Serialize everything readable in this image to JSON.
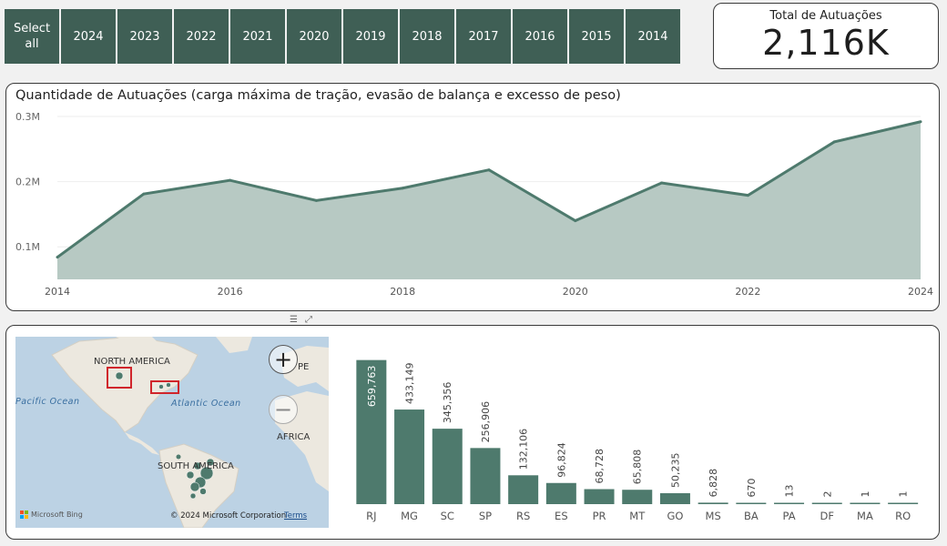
{
  "slicer": {
    "items": [
      "Select\nall",
      "2024",
      "2023",
      "2022",
      "2021",
      "2020",
      "2019",
      "2018",
      "2017",
      "2016",
      "2015",
      "2014"
    ]
  },
  "kpi": {
    "title": "Total de Autuações",
    "value": "2,116K"
  },
  "line_chart": {
    "title": "Quantidade de Autuações (carga máxima de tração, evasão de balança e excesso de peso)"
  },
  "map": {
    "labels": {
      "north_america": "NORTH AMERICA",
      "pacific": "Pacific Ocean",
      "atlantic": "Atlantic Ocean",
      "south_america": "SOUTH AMERICA",
      "africa": "AFRICA",
      "europe_partial": "PE"
    },
    "copyright": "© 2024 Microsoft Corporation",
    "terms": "Terms",
    "bing": "Microsoft Bing",
    "zoom_in": "+",
    "zoom_out": "−"
  },
  "chart_data": [
    {
      "type": "area",
      "title": "Quantidade de Autuações (carga máxima de tração, evasão de balança e excesso de peso)",
      "x": [
        2014,
        2015,
        2016,
        2017,
        2018,
        2019,
        2020,
        2021,
        2022,
        2023,
        2024
      ],
      "values": [
        84000,
        181000,
        202000,
        171000,
        190000,
        218000,
        140000,
        198000,
        179000,
        261000,
        292000
      ],
      "xticks": [
        "2014",
        "2016",
        "2018",
        "2020",
        "2022",
        "2024"
      ],
      "yticks": [
        "0.1M",
        "0.2M",
        "0.3M"
      ],
      "ylim": [
        50000,
        300000
      ],
      "grid": true,
      "color": "#4e7a6d"
    },
    {
      "type": "bar",
      "categories": [
        "RJ",
        "MG",
        "SC",
        "SP",
        "RS",
        "ES",
        "PR",
        "MT",
        "GO",
        "MS",
        "BA",
        "PA",
        "DF",
        "MA",
        "RO"
      ],
      "values": [
        659763,
        433149,
        345356,
        256906,
        132106,
        96824,
        68728,
        65808,
        50235,
        6828,
        670,
        13,
        2,
        1,
        1
      ],
      "labels": [
        "659,763",
        "433,149",
        "345,356",
        "256,906",
        "132,106",
        "96,824",
        "68,728",
        "65,808",
        "50,235",
        "6,828",
        "670",
        "13",
        "2",
        "1",
        "1"
      ],
      "ylim": [
        0,
        700000
      ],
      "color": "#4e7a6d"
    }
  ]
}
